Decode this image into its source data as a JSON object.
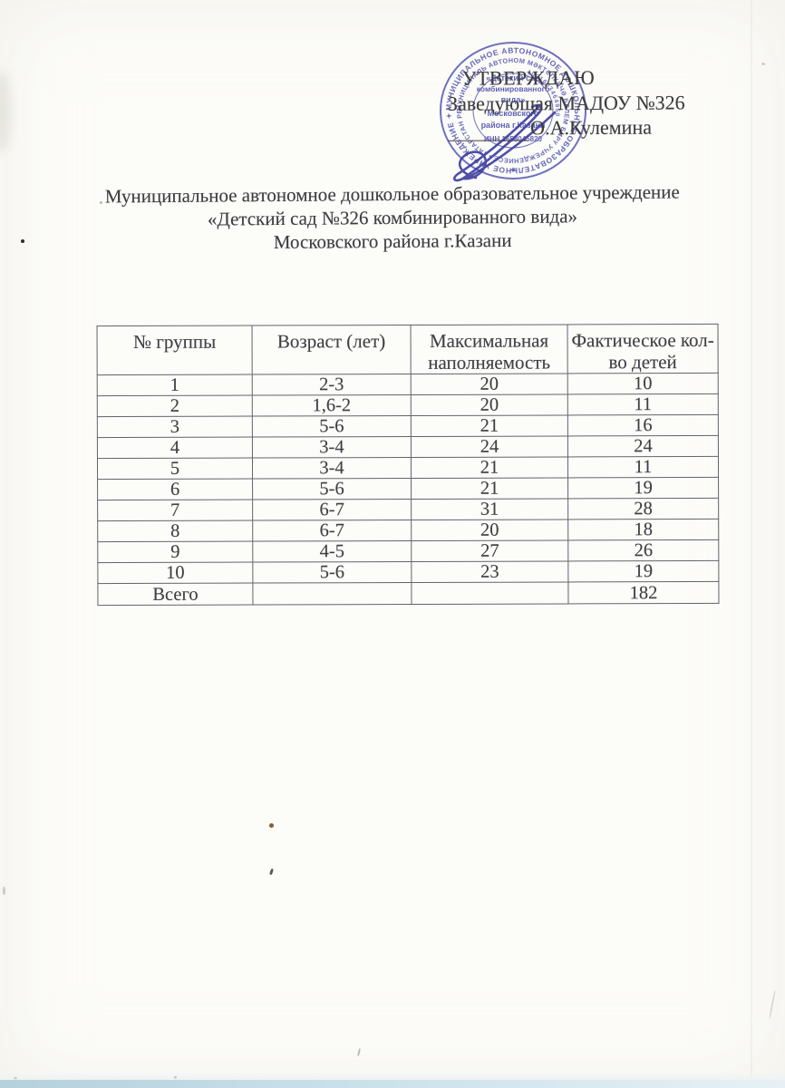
{
  "approval": {
    "line1": "УТВЕРЖДАЮ",
    "line2": "Заведующая МАДОУ №326",
    "signature_name": "О.А.Кулемина"
  },
  "org_title": {
    "line1": "Муниципальное автономное дошкольное образовательное учреждение",
    "line2": "«Детский сад №326 комбинированного вида»",
    "line3": "Московского района г.Казани"
  },
  "stamp": {
    "ring_text_outer": "МУНИЦИПАЛЬНОЕ АВТОНОМНОЕ ДОШКОЛЬНОЕ ОБРАЗОВАТЕЛЬНОЕ УЧРЕЖДЕНИЕ ✦ КАЗАНЬ",
    "ring_text_inner": "МУНИЦИПАЛЬ АВТОНОМ МӘКТӘПКӘЧӘ БЕЛЕМ БИРҮ УЧРЕЖДЕНИЕСЕ • ТАТАРСТАН РЕСПУБЛИКАСЫ",
    "ring_text_numbers": "1021603464950",
    "center_lines": [
      "«Детский сад",
      "комбинированного",
      "вида»",
      "Московского",
      "района г.Казани",
      "ИНН 1658045820"
    ],
    "diamond": "✦",
    "ink_color": "#5456b0"
  },
  "table": {
    "columns": [
      "№ группы",
      "Возраст (лет)",
      "Максимальная\nнаполняемость",
      "Фактическое кол-\nво детей"
    ],
    "rows": [
      [
        "1",
        "2-3",
        "20",
        "10"
      ],
      [
        "2",
        "1,6-2",
        "20",
        "11"
      ],
      [
        "3",
        "5-6",
        "21",
        "16"
      ],
      [
        "4",
        "3-4",
        "24",
        "24"
      ],
      [
        "5",
        "3-4",
        "21",
        "11"
      ],
      [
        "6",
        "5-6",
        "21",
        "19"
      ],
      [
        "7",
        "6-7",
        "31",
        "28"
      ],
      [
        "8",
        "6-7",
        "20",
        "18"
      ],
      [
        "9",
        "4-5",
        "27",
        "26"
      ],
      [
        "10",
        "5-6",
        "23",
        "19"
      ]
    ],
    "total_row": [
      "Всего",
      "",
      "",
      "182"
    ]
  },
  "colors": {
    "text": "#3d3c40",
    "stamp_blue": "#5456b0",
    "signature_blue": "#3d3da0",
    "table_border": "#63636e",
    "scan_edge_cyan": "#c7dfe9"
  }
}
